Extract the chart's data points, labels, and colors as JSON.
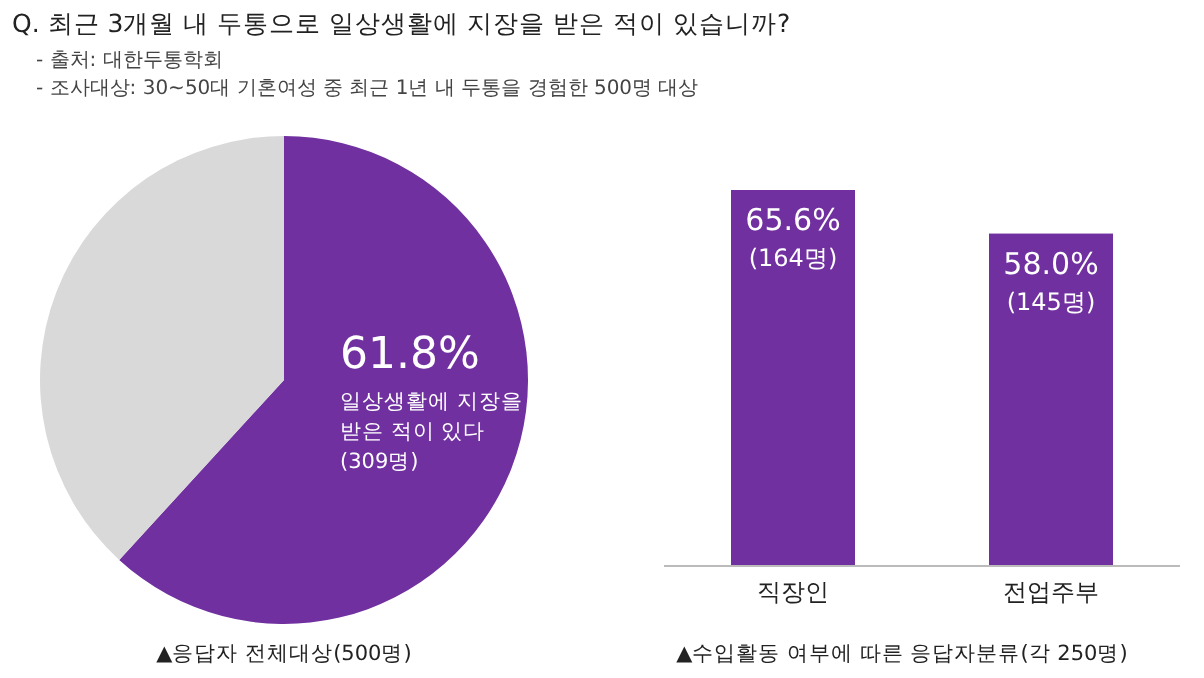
{
  "chart_data": [
    {
      "type": "pie",
      "title": "Q. 최근 3개월 내 두통으로 일상생활에 지장을 받은 적이 있습니까?",
      "annotations": [
        "- 출처: 대한두통학회",
        "- 조사대상: 30~50대 기혼여성 중 최근 1년 내 두통을 경험한 500명 대상"
      ],
      "xlabel": "▲응답자 전체대상(500명)",
      "categories": [
        "일상생활에 지장을 받은 적이 있다",
        null
      ],
      "values": [
        61.8,
        38.2
      ],
      "colors": [
        "#7030a0",
        "#d9d9d9"
      ],
      "value_labels": [
        "61.8%\n(309명)",
        null
      ]
    },
    {
      "type": "bar",
      "xlabel": "▲수입활동 여부에 따른 응답자분류(각 250명)",
      "categories": [
        "직장인",
        "전업주부"
      ],
      "values": [
        65.6,
        58.0
      ],
      "color": "#7030a0",
      "value_labels": [
        "65.6%\n(164명)",
        "58.0%\n(145명)"
      ]
    }
  ]
}
